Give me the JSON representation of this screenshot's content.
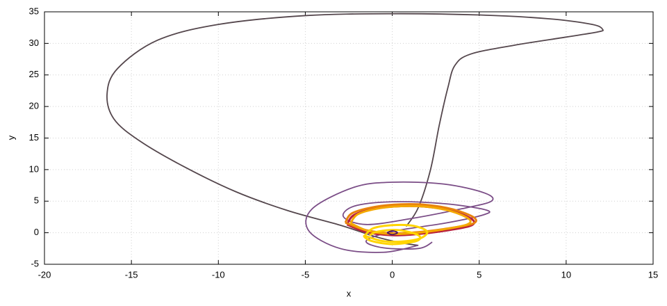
{
  "chart_data": {
    "type": "line",
    "xlabel": "x",
    "ylabel": "y",
    "xlim": [
      -20,
      15
    ],
    "xticks": [
      -20,
      -15,
      -10,
      -5,
      0,
      5,
      10,
      15
    ],
    "ylim": [
      -5,
      35
    ],
    "yticks": [
      -5,
      0,
      5,
      10,
      15,
      20,
      25,
      30,
      35
    ],
    "grid": true,
    "series": [
      {
        "color": "#54464c",
        "x": [
          0.8,
          1.5,
          2.2,
          2.7,
          3.2,
          3.6,
          4.5,
          7,
          10,
          11.8,
          12.1,
          11.5,
          9,
          5,
          0,
          -5,
          -10,
          -13.5,
          -15.8,
          -16.4,
          -16,
          -14.5,
          -12,
          -9,
          -6,
          -3,
          -1,
          0.5,
          1.5
        ],
        "values": [
          1,
          4,
          10,
          17,
          23,
          26.5,
          28.3,
          29.7,
          31,
          31.8,
          32.2,
          33,
          33.9,
          34.5,
          34.7,
          34.4,
          33,
          30.5,
          26,
          22,
          18,
          14.5,
          10.5,
          6.5,
          3.5,
          1.2,
          -0.6,
          -1.6,
          -2
        ]
      },
      {
        "color": "#7a4c86",
        "x": [
          1.5,
          -0.5,
          -3,
          -4.8,
          -4.6,
          -2.2,
          0,
          3,
          5.3,
          5.7,
          4,
          1,
          -1.5,
          -2.8,
          -2.2,
          0,
          3,
          5.4,
          5.2,
          3,
          0,
          -1.5,
          -0.5,
          1.5,
          2.3
        ],
        "values": [
          -2,
          -3.1,
          -2.5,
          0.3,
          3.8,
          7.2,
          8,
          7.7,
          6.3,
          5,
          3.8,
          2.2,
          1.3,
          2.5,
          4.2,
          4.9,
          4.6,
          3.6,
          2.8,
          1.5,
          0.2,
          -1.3,
          -2.4,
          -2.5,
          -1.5
        ]
      },
      {
        "color": "#b8203c",
        "x": [
          -2.6,
          -2.2,
          -1,
          0.5,
          2,
          3.5,
          4.6,
          4.5,
          3,
          1.5,
          0,
          -1.5,
          -2.6
        ],
        "values": [
          1.3,
          2.8,
          3.8,
          4.2,
          4.1,
          3.4,
          2.1,
          1.1,
          0.3,
          -0.2,
          -0.4,
          0.1,
          1.3
        ]
      },
      {
        "color": "#e8820c",
        "x": [
          -2.7,
          -2.3,
          -1,
          0.5,
          2,
          3.5,
          4.7,
          4.6,
          3,
          1.5,
          0,
          -1.5,
          -2.7
        ],
        "values": [
          1.6,
          3.1,
          4.1,
          4.5,
          4.4,
          3.7,
          2.4,
          1.4,
          0.6,
          0.1,
          -0.1,
          0.4,
          1.6
        ]
      },
      {
        "color": "#f4a800",
        "x": [
          -2.4,
          -2,
          -0.9,
          0.5,
          2,
          3.4,
          4.4,
          4.3,
          2.9,
          1.5,
          0,
          -1.4,
          -2.4
        ],
        "values": [
          1.5,
          2.9,
          3.8,
          4.2,
          4.1,
          3.4,
          2.2,
          1.3,
          0.5,
          0,
          -0.2,
          0.3,
          1.5
        ]
      },
      {
        "color": "#ffd400",
        "x": [
          -1.6,
          -1.1,
          0,
          1.2,
          2,
          1.6,
          0.5,
          -0.6,
          -1.6,
          -1.2,
          0,
          1.4,
          1.5,
          0.4,
          -0.8,
          -1.3
        ],
        "values": [
          -0.5,
          0.7,
          1.2,
          1.1,
          0.2,
          -0.9,
          -1.4,
          -1.3,
          -0.5,
          -1.3,
          -1.8,
          -1.3,
          -0.4,
          0.4,
          0.2,
          -0.4
        ]
      },
      {
        "color": "#4b0f6b",
        "x": [
          -0.3,
          0,
          0.3,
          0,
          -0.3
        ],
        "values": [
          0,
          0.3,
          0,
          -0.3,
          0
        ]
      }
    ]
  }
}
